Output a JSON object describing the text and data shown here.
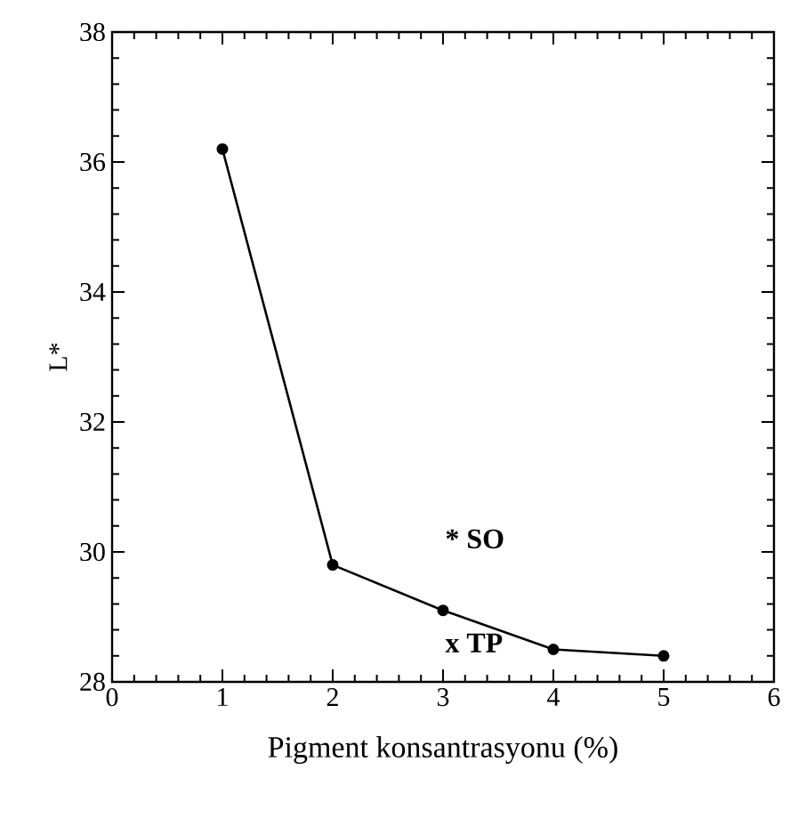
{
  "chart_data": {
    "type": "line",
    "xlabel": "Pigment konsantrasyonu (%)",
    "ylabel": "L*",
    "x": [
      1,
      2,
      3,
      4,
      5
    ],
    "series": [
      {
        "color": "#000000",
        "values": [
          36.2,
          29.8,
          29.1,
          28.5,
          28.4
        ]
      }
    ],
    "marker": "circle",
    "line_style": "solid",
    "xlim": [
      0,
      6
    ],
    "xticks": [
      0,
      1,
      2,
      3,
      4,
      5,
      6
    ],
    "ylim": [
      28,
      38
    ],
    "yticks": [
      28,
      30,
      32,
      34,
      36,
      38
    ],
    "annotations": [
      "* SO",
      "x TP"
    ]
  }
}
